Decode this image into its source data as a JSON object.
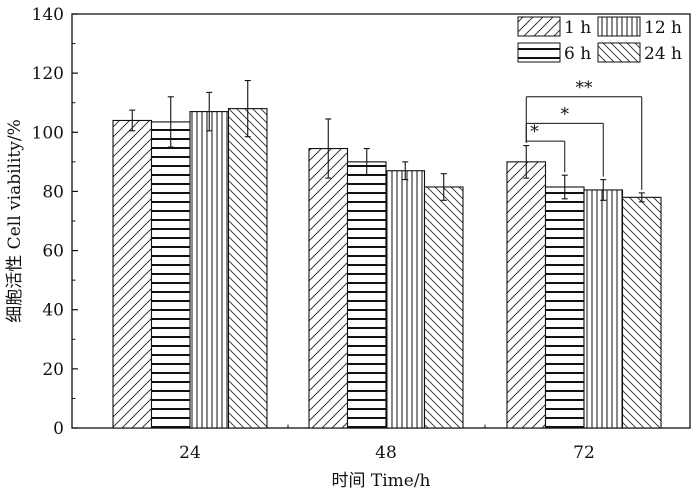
{
  "chart_data": {
    "type": "bar",
    "categories": [
      "24",
      "48",
      "72"
    ],
    "xlabel": "时间 Time/h",
    "ylabel": "细胞活性 Cell viability/%",
    "ylim": [
      0,
      140
    ],
    "yticks": [
      0,
      20,
      40,
      60,
      80,
      100,
      120,
      140
    ],
    "grid": false,
    "legend_position": "top-right",
    "series": [
      {
        "name": "1 h",
        "pattern": "diagonal-forward",
        "values": [
          104,
          94.5,
          90
        ],
        "errors": [
          3.5,
          10,
          5.5
        ]
      },
      {
        "name": "6 h",
        "pattern": "horizontal",
        "values": [
          103.5,
          90,
          81.5
        ],
        "errors": [
          8.5,
          4.5,
          4
        ]
      },
      {
        "name": "12 h",
        "pattern": "vertical",
        "values": [
          107,
          87,
          80.5
        ],
        "errors": [
          6.5,
          3,
          3.5
        ]
      },
      {
        "name": "24 h",
        "pattern": "diagonal-backward",
        "values": [
          108,
          81.5,
          78
        ],
        "errors": [
          9.5,
          4.5,
          1.5
        ]
      }
    ],
    "significance": [
      {
        "label": "*",
        "from": "1 h",
        "to": "6 h",
        "category": "72"
      },
      {
        "label": "*",
        "from": "1 h",
        "to": "12 h",
        "category": "72"
      },
      {
        "label": "**",
        "from": "1 h",
        "to": "24 h",
        "category": "72"
      }
    ]
  }
}
